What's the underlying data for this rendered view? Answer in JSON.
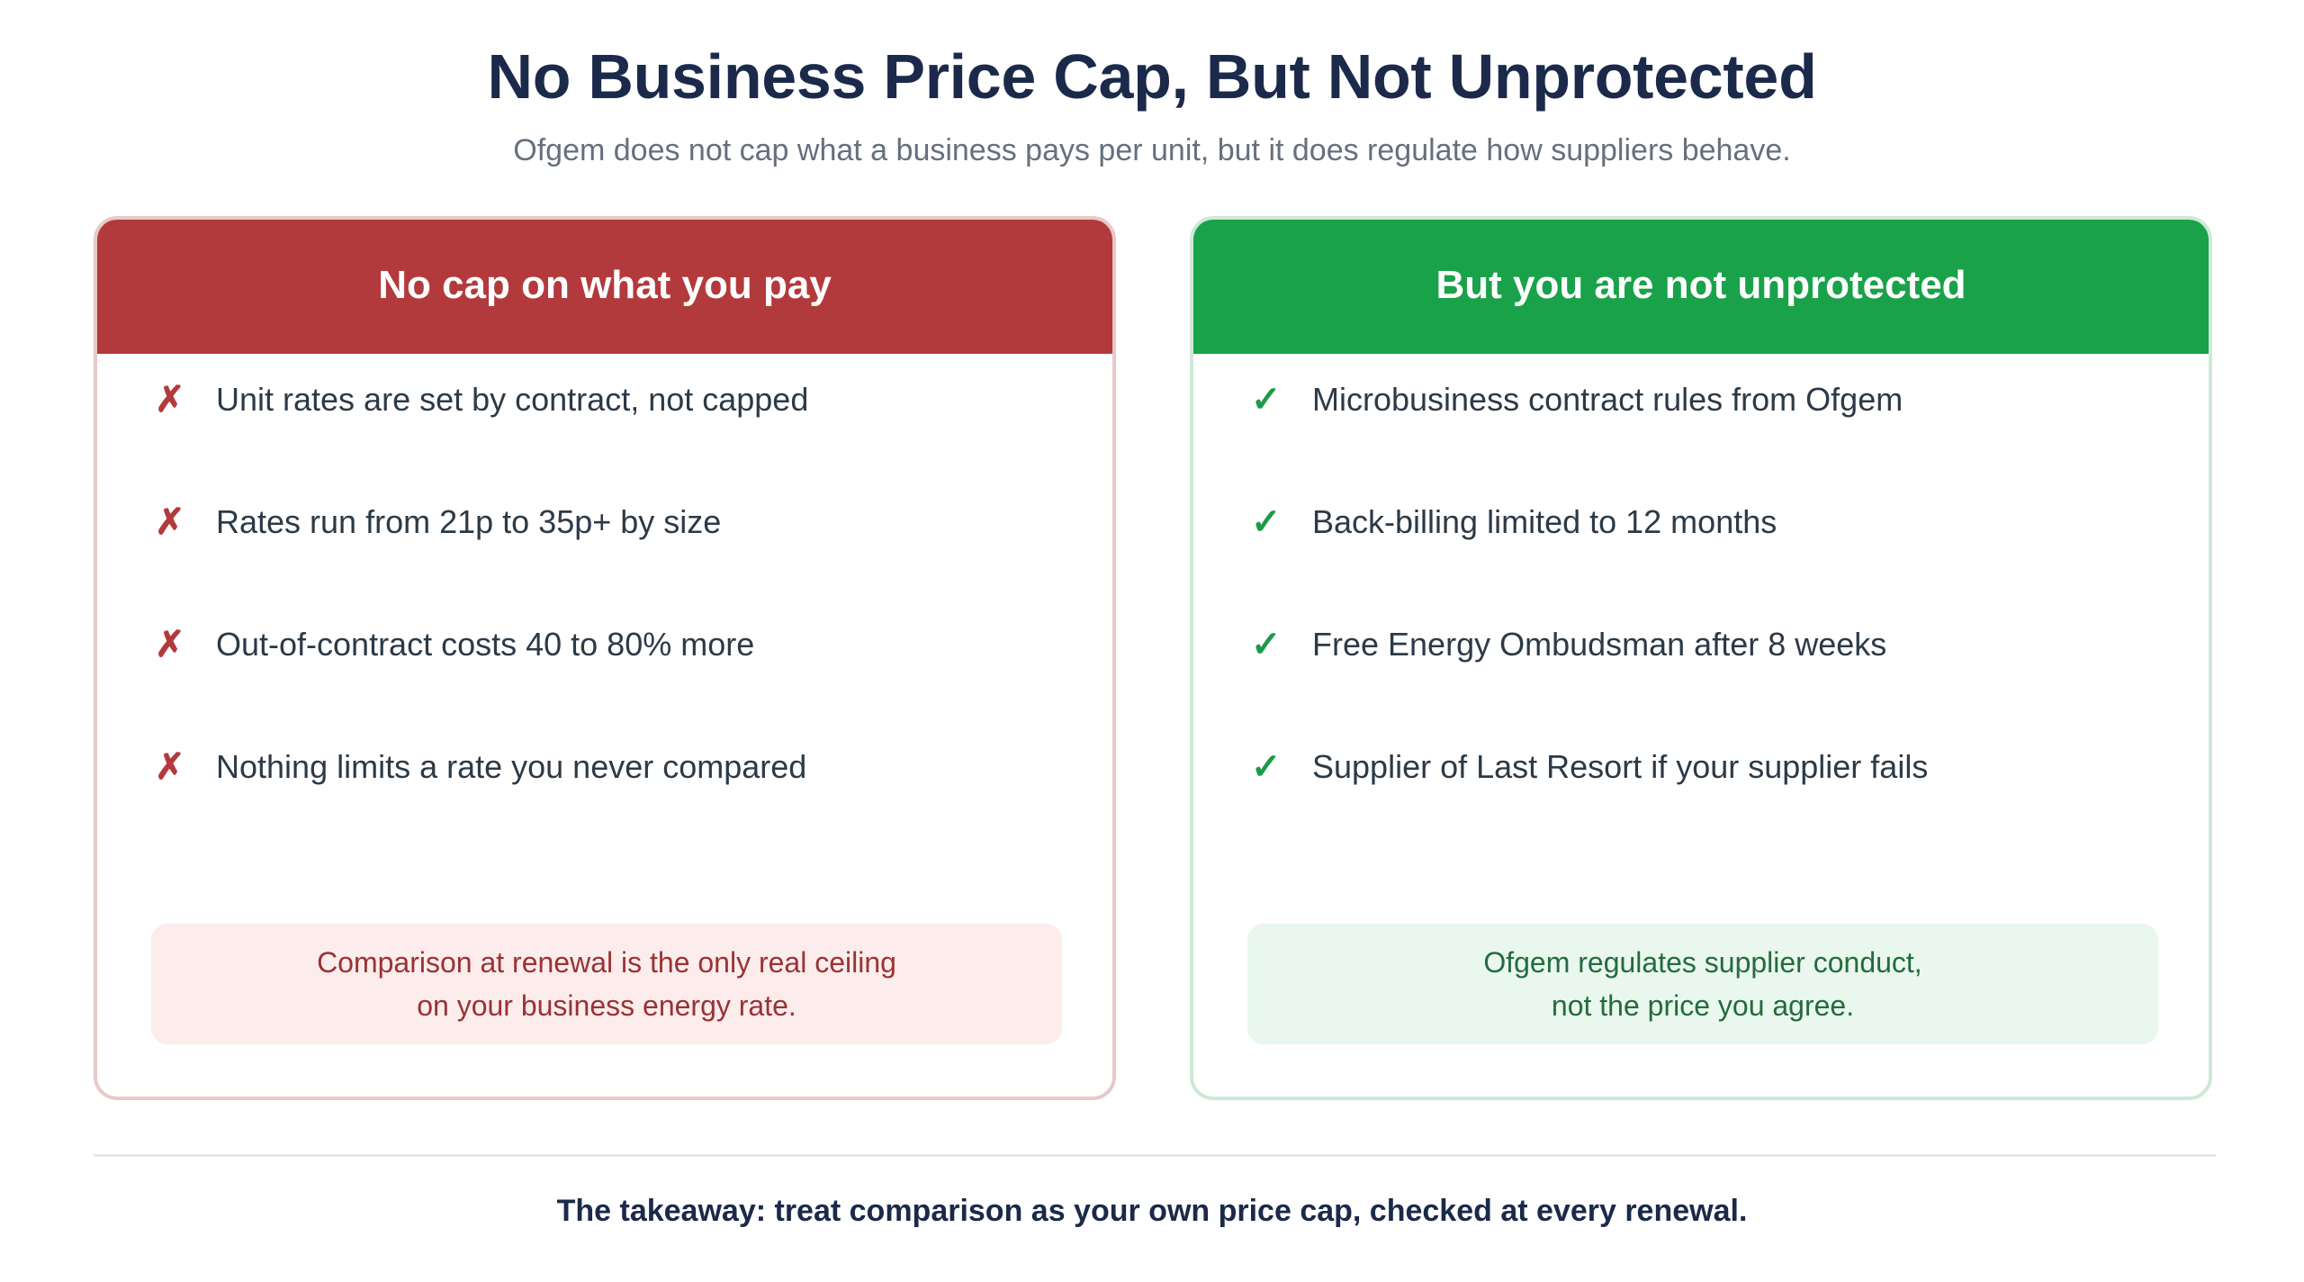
{
  "header": {
    "title": "No Business Price Cap, But Not Unprotected",
    "subtitle": "Ofgem does not cap what a business pays per unit, but it does regulate how suppliers behave."
  },
  "left_card": {
    "heading": "No cap on what you pay",
    "mark": "✗",
    "mark_icon": "cross-icon",
    "accent": "#b33a3c",
    "items": [
      "Unit rates are set by contract, not capped",
      "Rates run from 21p to 35p+ by size",
      "Out-of-contract costs 40 to 80% more",
      "Nothing limits a rate you never compared"
    ],
    "note_lines": [
      "Comparison at renewal is the only real ceiling",
      "on your business energy rate."
    ]
  },
  "right_card": {
    "heading": "But you are not unprotected",
    "mark": "✓",
    "mark_icon": "check-icon",
    "accent": "#19a24a",
    "items": [
      "Microbusiness contract rules from Ofgem",
      "Back-billing limited to 12 months",
      "Free Energy Ombudsman after 8 weeks",
      "Supplier of Last Resort if your supplier fails"
    ],
    "note_lines": [
      "Ofgem regulates supplier conduct,",
      "not the price you agree."
    ]
  },
  "footer": {
    "takeaway": "The takeaway: treat comparison as your own price cap, checked at every renewal."
  }
}
